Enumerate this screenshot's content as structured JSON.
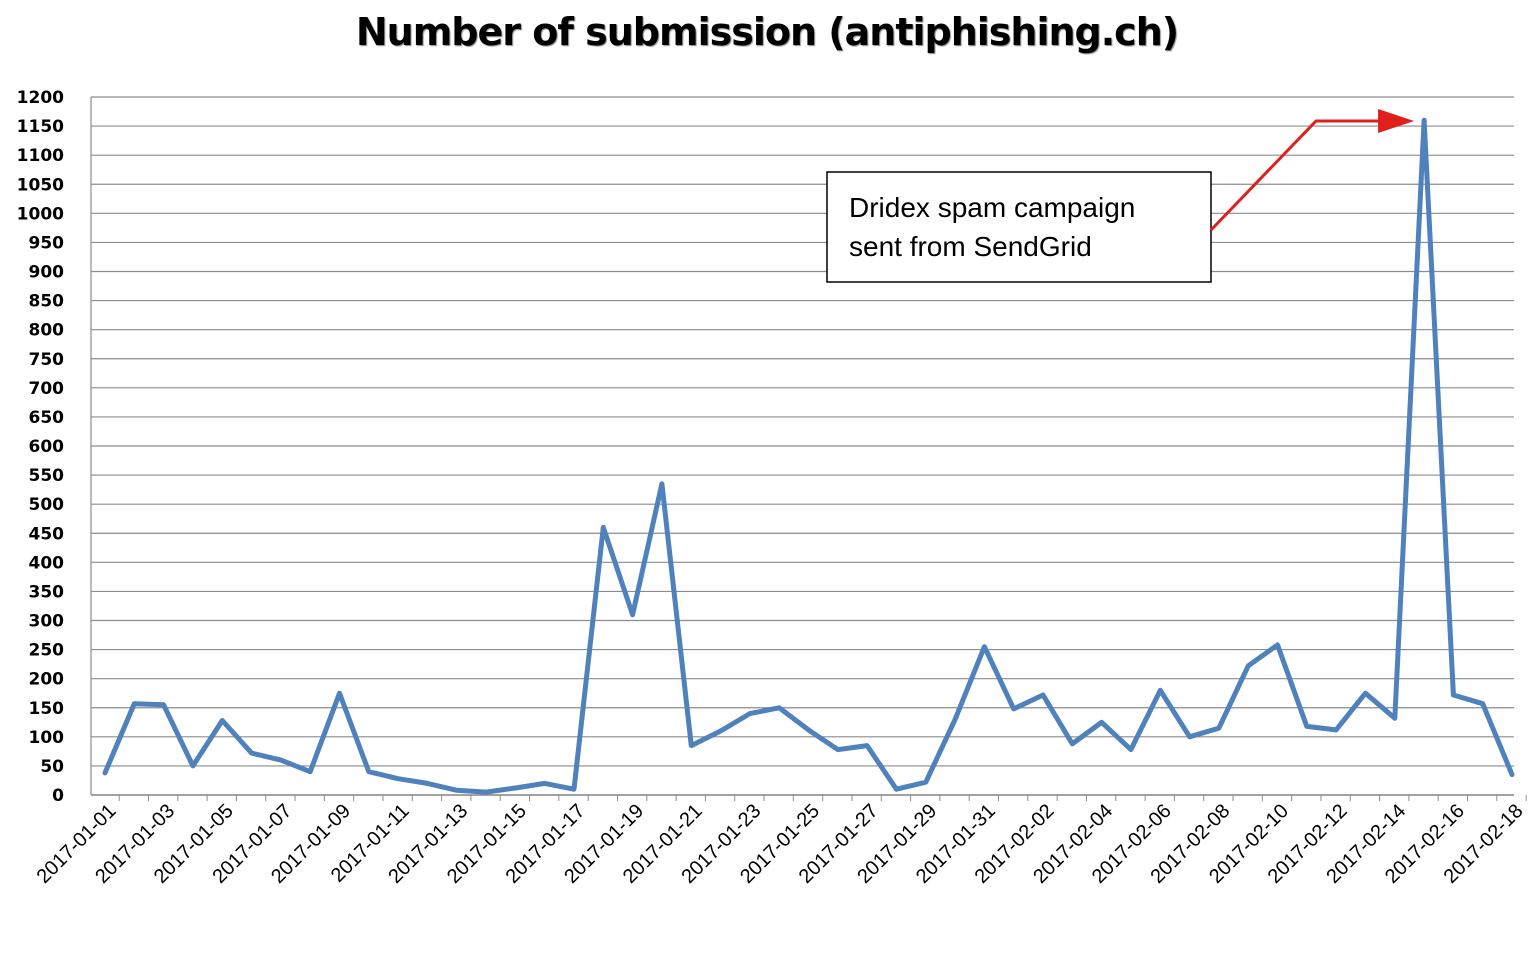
{
  "chart_data": {
    "type": "line",
    "title": "Number of submission (antiphishing.ch)",
    "xlabel": "",
    "ylabel": "",
    "ylim": [
      0,
      1200
    ],
    "ytick_step": 50,
    "grid": "horizontal",
    "series_color": "#4f81bd",
    "annotation_arrow_color": "#e0201d",
    "x_tick_labels": [
      "2017-01-01",
      "2017-01-03",
      "2017-01-05",
      "2017-01-07",
      "2017-01-09",
      "2017-01-11",
      "2017-01-13",
      "2017-01-15",
      "2017-01-17",
      "2017-01-19",
      "2017-01-21",
      "2017-01-23",
      "2017-01-25",
      "2017-01-27",
      "2017-01-29",
      "2017-01-31",
      "2017-02-02",
      "2017-02-04",
      "2017-02-06",
      "2017-02-08",
      "2017-02-10",
      "2017-02-12",
      "2017-02-14",
      "2017-02-16",
      "2017-02-18"
    ],
    "x": [
      "2017-01-01",
      "2017-01-02",
      "2017-01-03",
      "2017-01-04",
      "2017-01-05",
      "2017-01-06",
      "2017-01-07",
      "2017-01-08",
      "2017-01-09",
      "2017-01-10",
      "2017-01-11",
      "2017-01-12",
      "2017-01-13",
      "2017-01-14",
      "2017-01-15",
      "2017-01-16",
      "2017-01-17",
      "2017-01-18",
      "2017-01-19",
      "2017-01-20",
      "2017-01-21",
      "2017-01-22",
      "2017-01-23",
      "2017-01-24",
      "2017-01-25",
      "2017-01-26",
      "2017-01-27",
      "2017-01-28",
      "2017-01-29",
      "2017-01-30",
      "2017-01-31",
      "2017-02-01",
      "2017-02-02",
      "2017-02-03",
      "2017-02-04",
      "2017-02-05",
      "2017-02-06",
      "2017-02-07",
      "2017-02-08",
      "2017-02-09",
      "2017-02-10",
      "2017-02-11",
      "2017-02-12",
      "2017-02-13",
      "2017-02-14",
      "2017-02-15",
      "2017-02-16",
      "2017-02-17",
      "2017-02-18"
    ],
    "series": [
      {
        "values": [
          38,
          157,
          155,
          50,
          128,
          72,
          60,
          40,
          175,
          40,
          28,
          20,
          8,
          5,
          12,
          20,
          10,
          460,
          310,
          535,
          85,
          110,
          140,
          150,
          112,
          78,
          85,
          10,
          22,
          130,
          255,
          148,
          172,
          88,
          125,
          78,
          180,
          100,
          115,
          222,
          258,
          118,
          112,
          175,
          132,
          1160,
          172,
          157,
          35
        ]
      }
    ],
    "annotations": [
      {
        "lines": [
          "Dridex spam campaign",
          "sent from SendGrid"
        ],
        "points_to": "2017-02-15"
      }
    ]
  }
}
